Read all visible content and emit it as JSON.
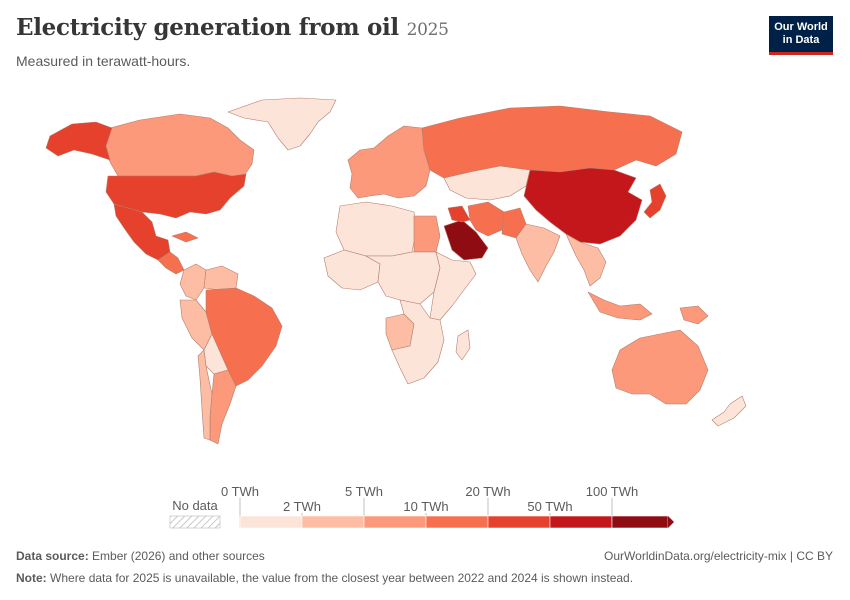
{
  "header": {
    "title": "Electricity generation from oil",
    "year": "2025",
    "subtitle": "Measured in terawatt-hours."
  },
  "logo": {
    "line1": "Our World",
    "line2": "in Data"
  },
  "map": {
    "colors": {
      "c1": "#fde4d8",
      "c2": "#fcbda4",
      "c3": "#fb997a",
      "c4": "#f6704f",
      "c5": "#e5412c",
      "c6": "#c4171c",
      "c7": "#8f0c13",
      "border": "#b37f6f"
    },
    "regions": [
      {
        "name": "Canada",
        "bin": "c3"
      },
      {
        "name": "Alaska (United States)",
        "bin": "c5"
      },
      {
        "name": "United States",
        "bin": "c5"
      },
      {
        "name": "Mexico",
        "bin": "c5"
      },
      {
        "name": "Greenland",
        "bin": "c1"
      },
      {
        "name": "Central America",
        "bin": "c4"
      },
      {
        "name": "Cuba",
        "bin": "c4"
      },
      {
        "name": "Brazil",
        "bin": "c4"
      },
      {
        "name": "Argentina",
        "bin": "c3"
      },
      {
        "name": "Chile",
        "bin": "c2"
      },
      {
        "name": "Colombia",
        "bin": "c2"
      },
      {
        "name": "Venezuela",
        "bin": "c2"
      },
      {
        "name": "Peru",
        "bin": "c2"
      },
      {
        "name": "Bolivia",
        "bin": "c1"
      },
      {
        "name": "Europe",
        "bin": "c3"
      },
      {
        "name": "Russia",
        "bin": "c4"
      },
      {
        "name": "Kazakhstan",
        "bin": "c1"
      },
      {
        "name": "China",
        "bin": "c6"
      },
      {
        "name": "Japan",
        "bin": "c5"
      },
      {
        "name": "Saudi Arabia",
        "bin": "c7"
      },
      {
        "name": "Iran",
        "bin": "c4"
      },
      {
        "name": "Iraq",
        "bin": "c5"
      },
      {
        "name": "Pakistan",
        "bin": "c4"
      },
      {
        "name": "India",
        "bin": "c2"
      },
      {
        "name": "Egypt",
        "bin": "c3"
      },
      {
        "name": "North Africa",
        "bin": "c1"
      },
      {
        "name": "West Africa",
        "bin": "c1"
      },
      {
        "name": "Central Africa",
        "bin": "c1"
      },
      {
        "name": "Angola",
        "bin": "c2"
      },
      {
        "name": "Southern Africa",
        "bin": "c1"
      },
      {
        "name": "East Africa",
        "bin": "c1"
      },
      {
        "name": "Southeast Asia",
        "bin": "c2"
      },
      {
        "name": "Indonesia",
        "bin": "c3"
      },
      {
        "name": "Papua New Guinea",
        "bin": "c3"
      },
      {
        "name": "Australia",
        "bin": "c3"
      },
      {
        "name": "New Zealand",
        "bin": "c1"
      },
      {
        "name": "Madagascar",
        "bin": "c1"
      }
    ]
  },
  "legend": {
    "no_data": "No data",
    "labels_top": [
      "0 TWh",
      "5 TWh",
      "20 TWh",
      "100 TWh"
    ],
    "labels_bottom": [
      "2 TWh",
      "10 TWh",
      "50 TWh"
    ]
  },
  "footer": {
    "source_label": "Data source:",
    "source_text": "Ember (2026) and other sources",
    "url": "OurWorldinData.org/electricity-mix | CC BY",
    "note_label": "Note:",
    "note_text": "Where data for 2025 is unavailable, the value from the closest year between 2022 and 2024 is shown instead."
  }
}
